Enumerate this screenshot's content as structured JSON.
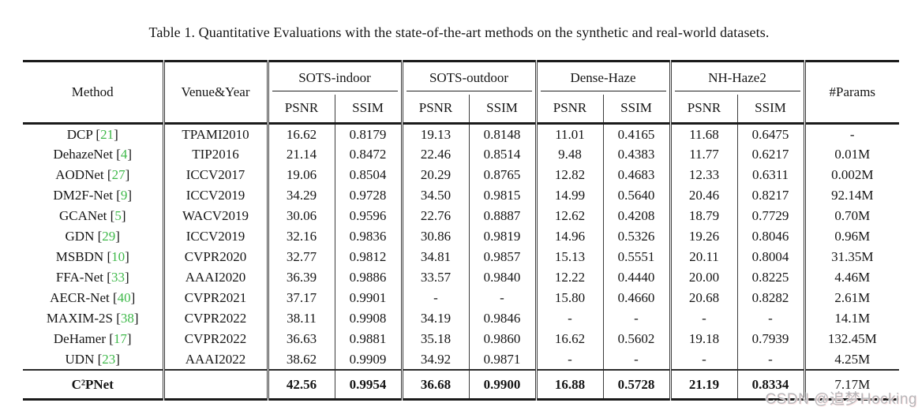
{
  "caption": "Table 1. Quantitative Evaluations with the state-of-the-art methods on the synthetic and real-world datasets.",
  "watermark": "CSDN @追梦Hocking",
  "colors": {
    "citation_green": "#3fb94a",
    "rule_black": "#1a1a1a"
  },
  "table": {
    "col_method": "Method",
    "col_venue": "Venue&Year",
    "col_params": "#Params",
    "groups": [
      {
        "label": "SOTS-indoor"
      },
      {
        "label": "SOTS-outdoor"
      },
      {
        "label": "Dense-Haze"
      },
      {
        "label": "NH-Haze2"
      }
    ],
    "subcols": [
      "PSNR",
      "SSIM"
    ],
    "rows": [
      {
        "method": "DCP",
        "cite": "21",
        "venue": "TPAMI2010",
        "values": [
          "16.62",
          "0.8179",
          "19.13",
          "0.8148",
          "11.01",
          "0.4165",
          "11.68",
          "0.6475",
          "-"
        ]
      },
      {
        "method": "DehazeNet",
        "cite": "4",
        "venue": "TIP2016",
        "values": [
          "21.14",
          "0.8472",
          "22.46",
          "0.8514",
          "9.48",
          "0.4383",
          "11.77",
          "0.6217",
          "0.01M"
        ]
      },
      {
        "method": "AODNet",
        "cite": "27",
        "venue": "ICCV2017",
        "values": [
          "19.06",
          "0.8504",
          "20.29",
          "0.8765",
          "12.82",
          "0.4683",
          "12.33",
          "0.6311",
          "0.002M"
        ]
      },
      {
        "method": "DM2F-Net",
        "cite": "9",
        "venue": "ICCV2019",
        "values": [
          "34.29",
          "0.9728",
          "34.50",
          "0.9815",
          "14.99",
          "0.5640",
          "20.46",
          "0.8217",
          "92.14M"
        ]
      },
      {
        "method": "GCANet",
        "cite": "5",
        "venue": "WACV2019",
        "values": [
          "30.06",
          "0.9596",
          "22.76",
          "0.8887",
          "12.62",
          "0.4208",
          "18.79",
          "0.7729",
          "0.70M"
        ]
      },
      {
        "method": "GDN",
        "cite": "29",
        "venue": "ICCV2019",
        "values": [
          "32.16",
          "0.9836",
          "30.86",
          "0.9819",
          "14.96",
          "0.5326",
          "19.26",
          "0.8046",
          "0.96M"
        ]
      },
      {
        "method": "MSBDN",
        "cite": "10",
        "venue": "CVPR2020",
        "values": [
          "32.77",
          "0.9812",
          "34.81",
          "0.9857",
          "15.13",
          "0.5551",
          "20.11",
          "0.8004",
          "31.35M"
        ]
      },
      {
        "method": "FFA-Net",
        "cite": "33",
        "venue": "AAAI2020",
        "values": [
          "36.39",
          "0.9886",
          "33.57",
          "0.9840",
          "12.22",
          "0.4440",
          "20.00",
          "0.8225",
          "4.46M"
        ]
      },
      {
        "method": "AECR-Net",
        "cite": "40",
        "venue": "CVPR2021",
        "values": [
          "37.17",
          "0.9901",
          "-",
          "-",
          "15.80",
          "0.4660",
          "20.68",
          "0.8282",
          "2.61M"
        ]
      },
      {
        "method": "MAXIM-2S",
        "cite": "38",
        "venue": "CVPR2022",
        "values": [
          "38.11",
          "0.9908",
          "34.19",
          "0.9846",
          "-",
          "-",
          "-",
          "-",
          "14.1M"
        ]
      },
      {
        "method": "DeHamer",
        "cite": "17",
        "venue": "CVPR2022",
        "values": [
          "36.63",
          "0.9881",
          "35.18",
          "0.9860",
          "16.62",
          "0.5602",
          "19.18",
          "0.7939",
          "132.45M"
        ]
      },
      {
        "method": "UDN",
        "cite": "23",
        "venue": "AAAI2022",
        "values": [
          "38.62",
          "0.9909",
          "34.92",
          "0.9871",
          "-",
          "-",
          "-",
          "-",
          "4.25M"
        ]
      }
    ],
    "final_row": {
      "method": "C²PNet",
      "cite": "",
      "venue": "",
      "values": [
        "42.56",
        "0.9954",
        "36.68",
        "0.9900",
        "16.88",
        "0.5728",
        "21.19",
        "0.8334",
        "7.17M"
      ]
    }
  }
}
